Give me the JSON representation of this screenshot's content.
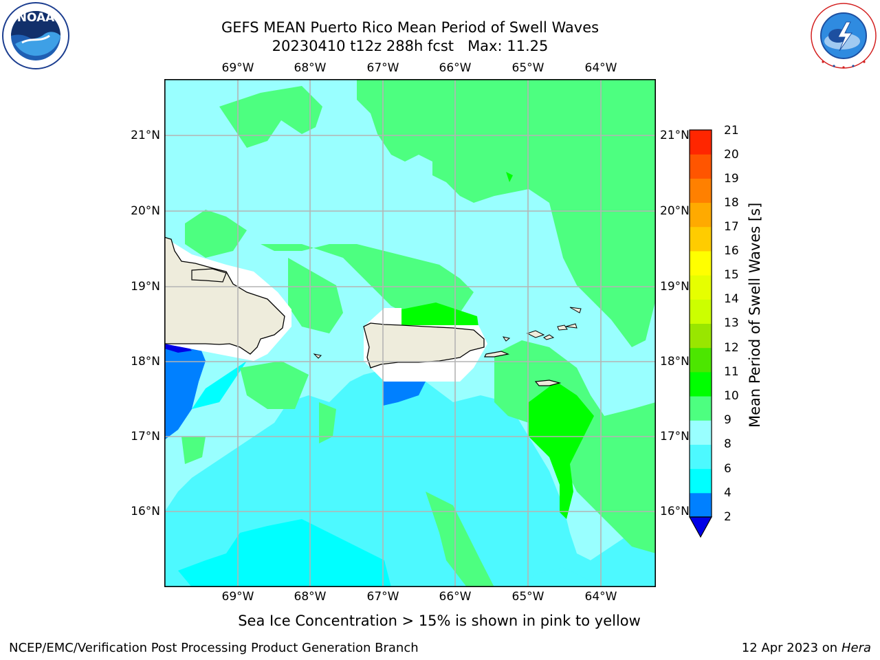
{
  "title": {
    "line1": "GEFS MEAN Puerto Rico Mean Period of Swell Waves",
    "line2": "20230410 t12z 288h fcst   Max: 11.25"
  },
  "logos": {
    "left": {
      "icon": "noaa-logo",
      "text": "NOAA",
      "ring_text": "NATIONAL OCEANIC AND ATMOSPHERIC ADMINISTRATION · U.S. DEPARTMENT OF COMMERCE"
    },
    "right": {
      "icon": "nws-logo",
      "ring_text": "NATIONAL WEATHER SERVICE"
    }
  },
  "map": {
    "lon_labels": [
      "69°W",
      "68°W",
      "67°W",
      "66°W",
      "65°W",
      "64°W"
    ],
    "lat_labels": [
      "21°N",
      "20°N",
      "19°N",
      "18°N",
      "17°N",
      "16°N"
    ],
    "ocean_color": "#99ffff",
    "land_color": "#eeecdc"
  },
  "colorbar": {
    "label": "Mean Period of Swell Waves [s]",
    "ticks": [
      "2",
      "4",
      "6",
      "8",
      "9",
      "10",
      "11",
      "12",
      "13",
      "14",
      "15",
      "16",
      "17",
      "18",
      "19",
      "20",
      "21"
    ],
    "colors": [
      "#0000e6",
      "#0080ff",
      "#00ffff",
      "#4df9ff",
      "#99ffff",
      "#4dff80",
      "#00ff00",
      "#4ce600",
      "#99e600",
      "#ccff00",
      "#e6ff00",
      "#ffff00",
      "#ffcc00",
      "#ffaa00",
      "#ff8000",
      "#ff5500",
      "#ff2600",
      "#ff0000"
    ]
  },
  "subtitle": "Sea Ice Concentration > 15% is shown in pink to yellow",
  "footer": {
    "left": "NCEP/EMC/Verification Post Processing Product Generation Branch",
    "right_prefix": "12 Apr 2023 on ",
    "right_machine": "Hera"
  }
}
